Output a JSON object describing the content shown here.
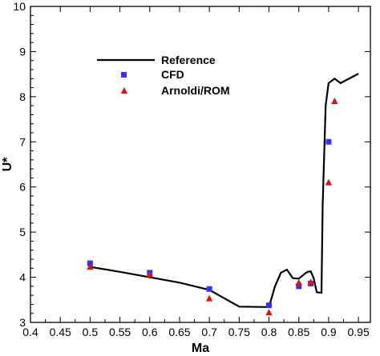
{
  "chart_data": {
    "type": "line",
    "xlabel": "Ma",
    "ylabel": "U*",
    "xlim": [
      0.4,
      0.97
    ],
    "ylim": [
      3,
      10
    ],
    "xticks": [
      "0.4",
      "0.45",
      "0.5",
      "0.55",
      "0.6",
      "0.65",
      "0.7",
      "0.75",
      "0.8",
      "0.85",
      "0.9",
      "0.95"
    ],
    "yticks": [
      "3",
      "4",
      "5",
      "6",
      "7",
      "8",
      "9",
      "10"
    ],
    "legend_position": "upper-left",
    "series": [
      {
        "name": "Reference",
        "style": "line",
        "color": "#000000",
        "x": [
          0.5,
          0.55,
          0.6,
          0.65,
          0.7,
          0.75,
          0.8,
          0.81,
          0.82,
          0.83,
          0.84,
          0.85,
          0.86,
          0.865,
          0.87,
          0.875,
          0.88,
          0.885,
          0.888,
          0.89,
          0.895,
          0.9,
          0.91,
          0.92,
          0.95
        ],
        "y": [
          4.23,
          4.12,
          4.0,
          3.88,
          3.72,
          3.35,
          3.34,
          3.8,
          4.1,
          4.17,
          3.98,
          3.97,
          4.08,
          4.12,
          4.13,
          3.98,
          3.67,
          3.66,
          3.66,
          5.6,
          7.8,
          8.3,
          8.4,
          8.3,
          8.51
        ]
      },
      {
        "name": "CFD",
        "style": "square",
        "color": "#3333ff",
        "x": [
          0.5,
          0.6,
          0.7,
          0.8,
          0.85,
          0.87,
          0.9
        ],
        "y": [
          4.31,
          4.1,
          3.74,
          3.38,
          3.8,
          3.86,
          7.0
        ]
      },
      {
        "name": "Arnoldi/ROM",
        "style": "triangle",
        "color": "#dd1111",
        "x": [
          0.5,
          0.6,
          0.7,
          0.8,
          0.85,
          0.87,
          0.9,
          0.91
        ],
        "y": [
          4.23,
          4.06,
          3.53,
          3.22,
          3.88,
          3.89,
          6.1,
          7.9
        ]
      }
    ]
  }
}
